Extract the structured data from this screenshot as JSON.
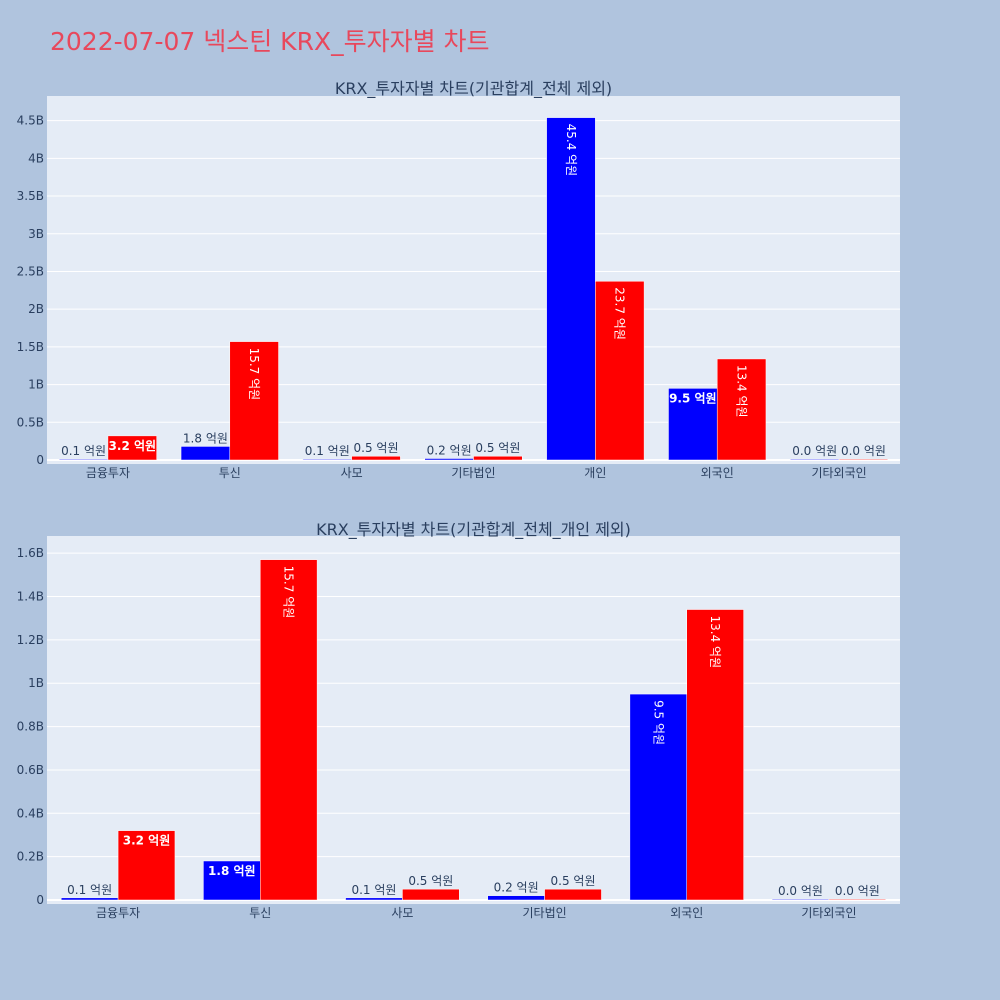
{
  "page": {
    "title": "2022-07-07 넥스틴 KRX_투자자별 차트"
  },
  "colors": {
    "buy": "#0000ff",
    "sell": "#ff0000",
    "plot_bg": "#e5ecf6",
    "page_bg": "#b0c4de"
  },
  "chart_data": [
    {
      "type": "bar",
      "title": "KRX_투자자별 차트(기관합계_전체 제외)",
      "categories": [
        "금융투자",
        "투신",
        "사모",
        "기타법인",
        "개인",
        "외국인",
        "기타외국인"
      ],
      "series": [
        {
          "values": [
            10000000,
            180000000,
            10000000,
            20000000,
            4540000000,
            950000000,
            0
          ],
          "labels": [
            "0.1 억원",
            "1.8 억원",
            "0.1 억원",
            "0.2 억원",
            "45.4 억원",
            "9.5 억원",
            "0.0 억원"
          ]
        },
        {
          "values": [
            320000000,
            1570000000,
            50000000,
            50000000,
            2370000000,
            1340000000,
            0
          ],
          "labels": [
            "3.2 억원",
            "15.7 억원",
            "0.5 억원",
            "0.5 억원",
            "23.7 억원",
            "13.4 억원",
            "0.0 억원"
          ]
        }
      ],
      "ylim": [
        0,
        4800000000
      ],
      "yticks": [
        0,
        500000000,
        1000000000,
        1500000000,
        2000000000,
        2500000000,
        3000000000,
        3500000000,
        4000000000,
        4500000000
      ],
      "ytick_labels": [
        "0",
        "0.5B",
        "1B",
        "1.5B",
        "2B",
        "2.5B",
        "3B",
        "3.5B",
        "4B",
        "4.5B"
      ],
      "grid": true
    },
    {
      "type": "bar",
      "title": "KRX_투자자별 차트(기관합계_전체_개인 제외)",
      "categories": [
        "금융투자",
        "투신",
        "사모",
        "기타법인",
        "외국인",
        "기타외국인"
      ],
      "series": [
        {
          "values": [
            10000000,
            180000000,
            10000000,
            20000000,
            950000000,
            0
          ],
          "labels": [
            "0.1 억원",
            "1.8 억원",
            "0.1 억원",
            "0.2 억원",
            "9.5 억원",
            "0.0 억원"
          ]
        },
        {
          "values": [
            320000000,
            1570000000,
            50000000,
            50000000,
            1340000000,
            0
          ],
          "labels": [
            "3.2 억원",
            "15.7 억원",
            "0.5 억원",
            "0.5 억원",
            "13.4 억원",
            "0.0 억원"
          ]
        }
      ],
      "ylim": [
        0,
        1670000000
      ],
      "yticks": [
        0,
        200000000,
        400000000,
        600000000,
        800000000,
        1000000000,
        1200000000,
        1400000000,
        1600000000
      ],
      "ytick_labels": [
        "0",
        "0.2B",
        "0.4B",
        "0.6B",
        "0.8B",
        "1B",
        "1.2B",
        "1.4B",
        "1.6B"
      ],
      "grid": true
    }
  ]
}
